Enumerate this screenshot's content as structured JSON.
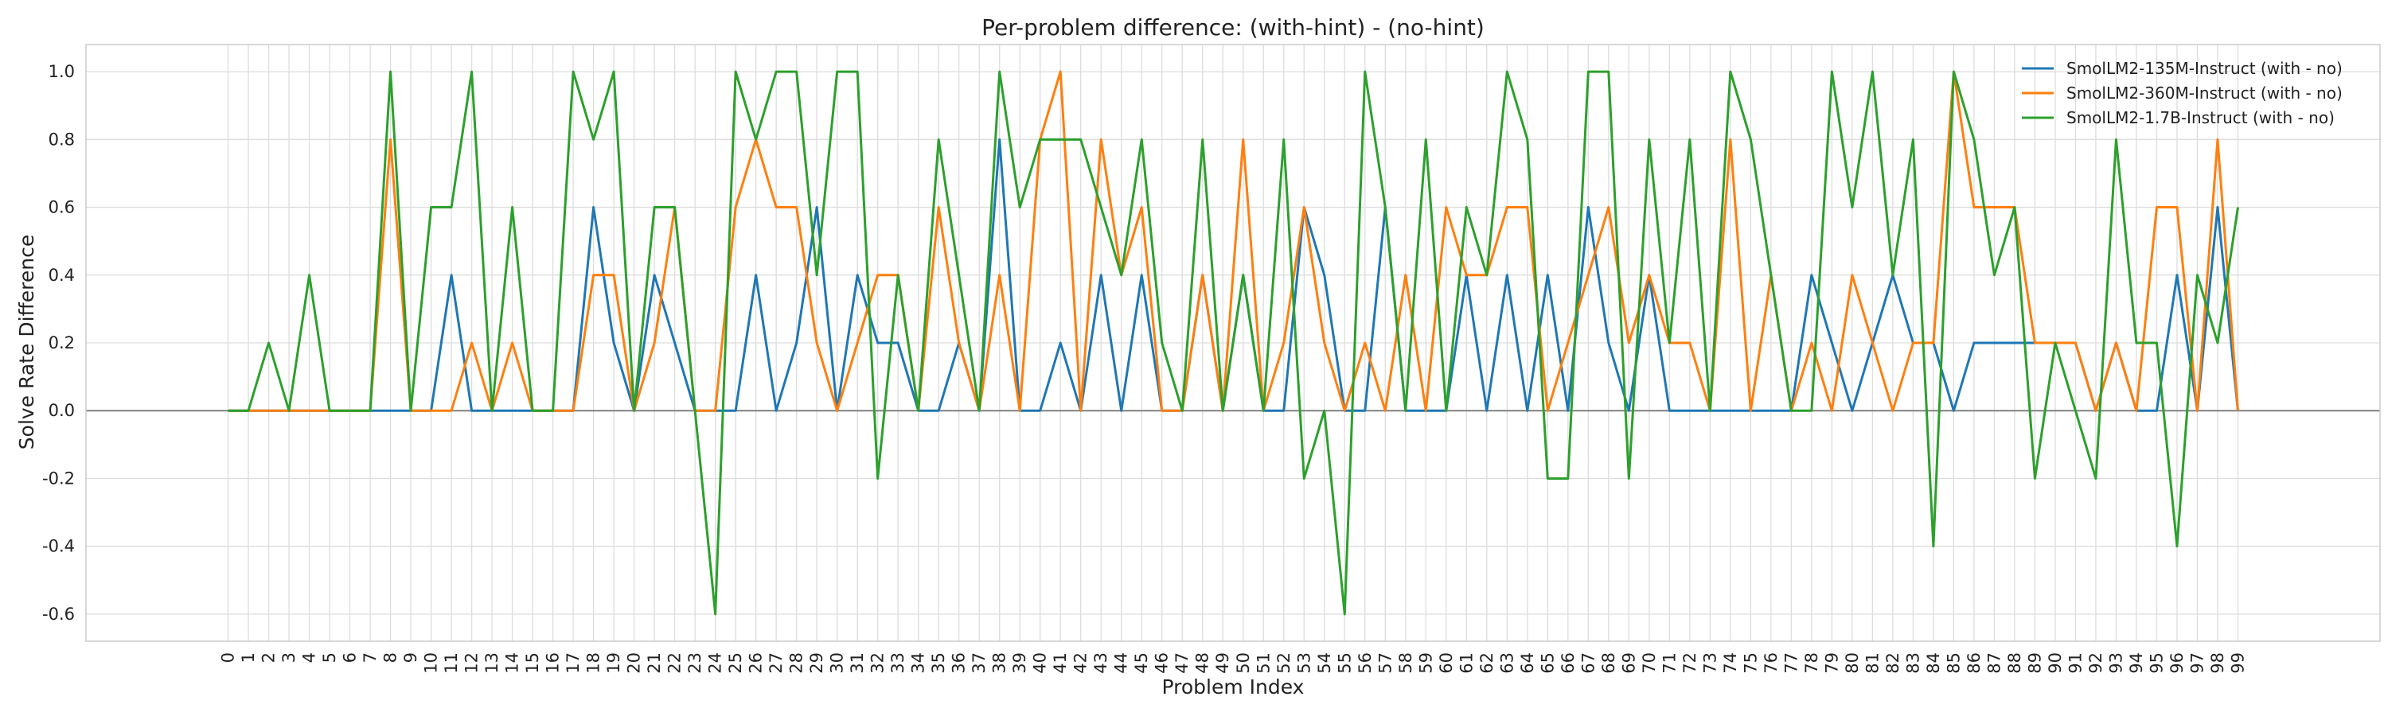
{
  "chart_data": {
    "type": "line",
    "title": "Per-problem difference: (with-hint) - (no-hint)",
    "xlabel": "Problem Index",
    "ylabel": "Solve Rate Difference",
    "xlim": [
      -7,
      106
    ],
    "ylim": [
      -0.68,
      1.08
    ],
    "yticks": [
      -0.6,
      -0.4,
      -0.2,
      0.0,
      0.2,
      0.4,
      0.6,
      0.8,
      1.0
    ],
    "grid": true,
    "legend_position": "top-right",
    "zero_line": true,
    "x": [
      0,
      1,
      2,
      3,
      4,
      5,
      6,
      7,
      8,
      9,
      10,
      11,
      12,
      13,
      14,
      15,
      16,
      17,
      18,
      19,
      20,
      21,
      22,
      23,
      24,
      25,
      26,
      27,
      28,
      29,
      30,
      31,
      32,
      33,
      34,
      35,
      36,
      37,
      38,
      39,
      40,
      41,
      42,
      43,
      44,
      45,
      46,
      47,
      48,
      49,
      50,
      51,
      52,
      53,
      54,
      55,
      56,
      57,
      58,
      59,
      60,
      61,
      62,
      63,
      64,
      65,
      66,
      67,
      68,
      69,
      70,
      71,
      72,
      73,
      74,
      75,
      76,
      77,
      78,
      79,
      80,
      81,
      82,
      83,
      84,
      85,
      86,
      87,
      88,
      89,
      90,
      91,
      92,
      93,
      94,
      95,
      96,
      97,
      98,
      99
    ],
    "series": [
      {
        "name": "SmolLM2-135M-Instruct (with - no)",
        "color": "#1f77b4",
        "values": [
          0,
          0,
          0,
          0,
          0,
          0,
          0,
          0,
          0,
          0,
          0,
          0.4,
          0,
          0,
          0,
          0,
          0,
          0,
          0.6,
          0.2,
          0,
          0.4,
          0.2,
          0,
          0,
          0,
          0.4,
          0,
          0.2,
          0.6,
          0,
          0.4,
          0.2,
          0.2,
          0,
          0,
          0.2,
          0,
          0.8,
          0,
          0,
          0.2,
          0,
          0.4,
          0,
          0.4,
          0,
          0,
          0.4,
          0,
          0.4,
          0,
          0,
          0.6,
          0.4,
          0,
          0,
          0.6,
          0,
          0,
          0,
          0.4,
          0,
          0.4,
          0,
          0.4,
          0,
          0.6,
          0.2,
          0,
          0.4,
          0,
          0,
          0,
          0,
          0,
          0,
          0,
          0.4,
          0.2,
          0,
          0.2,
          0.4,
          0.2,
          0.2,
          0,
          0.2,
          0.2,
          0.2,
          0.2,
          0.2,
          0.2,
          0,
          0.2,
          0,
          0,
          0.4,
          0,
          0.6,
          0
        ]
      },
      {
        "name": "SmolLM2-360M-Instruct (with - no)",
        "color": "#ff7f0e",
        "values": [
          0,
          0,
          0,
          0,
          0,
          0,
          0,
          0,
          0.8,
          0,
          0,
          0,
          0.2,
          0,
          0.2,
          0,
          0,
          0,
          0.4,
          0.4,
          0,
          0.2,
          0.6,
          0,
          0,
          0.6,
          0.8,
          0.6,
          0.6,
          0.2,
          0,
          0.2,
          0.4,
          0.4,
          0,
          0.6,
          0.2,
          0,
          0.4,
          0,
          0.8,
          1.0,
          0,
          0.8,
          0.4,
          0.6,
          0,
          0,
          0.4,
          0,
          0.8,
          0,
          0.2,
          0.6,
          0.2,
          0,
          0.2,
          0,
          0.4,
          0,
          0.6,
          0.4,
          0.4,
          0.6,
          0.6,
          0,
          0.2,
          0.4,
          0.6,
          0.2,
          0.4,
          0.2,
          0.2,
          0,
          0.8,
          0,
          0.4,
          0,
          0.2,
          0,
          0.4,
          0.2,
          0,
          0.2,
          0.2,
          1.0,
          0.6,
          0.6,
          0.6,
          0.2,
          0.2,
          0.2,
          0,
          0.2,
          0,
          0.6,
          0.6,
          0,
          0.8,
          0
        ]
      },
      {
        "name": "SmolLM2-1.7B-Instruct (with - no)",
        "color": "#2ca02c",
        "values": [
          0,
          0,
          0.2,
          0,
          0.4,
          0,
          0,
          0,
          1.0,
          0,
          0.6,
          0.6,
          1.0,
          0,
          0.6,
          0,
          0,
          1.0,
          0.8,
          1.0,
          0,
          0.6,
          0.6,
          0,
          -0.6,
          1.0,
          0.8,
          1.0,
          1.0,
          0.4,
          1.0,
          1.0,
          -0.2,
          0.4,
          0,
          0.8,
          0.4,
          0,
          1.0,
          0.6,
          0.8,
          0.8,
          0.8,
          0.6,
          0.4,
          0.8,
          0.2,
          0,
          0.8,
          0,
          0.4,
          0,
          0.8,
          -0.2,
          0,
          -0.6,
          1.0,
          0.6,
          0,
          0.8,
          0,
          0.6,
          0.4,
          1.0,
          0.8,
          -0.2,
          -0.2,
          1.0,
          1.0,
          -0.2,
          0.8,
          0.2,
          0.8,
          0,
          1.0,
          0.8,
          0.4,
          0,
          0,
          1.0,
          0.6,
          1.0,
          0.4,
          0.8,
          -0.4,
          1.0,
          0.8,
          0.4,
          0.6,
          -0.2,
          0.2,
          0,
          -0.2,
          0.8,
          0.2,
          0.2,
          -0.4,
          0.4,
          0.2,
          0.6
        ]
      }
    ]
  }
}
